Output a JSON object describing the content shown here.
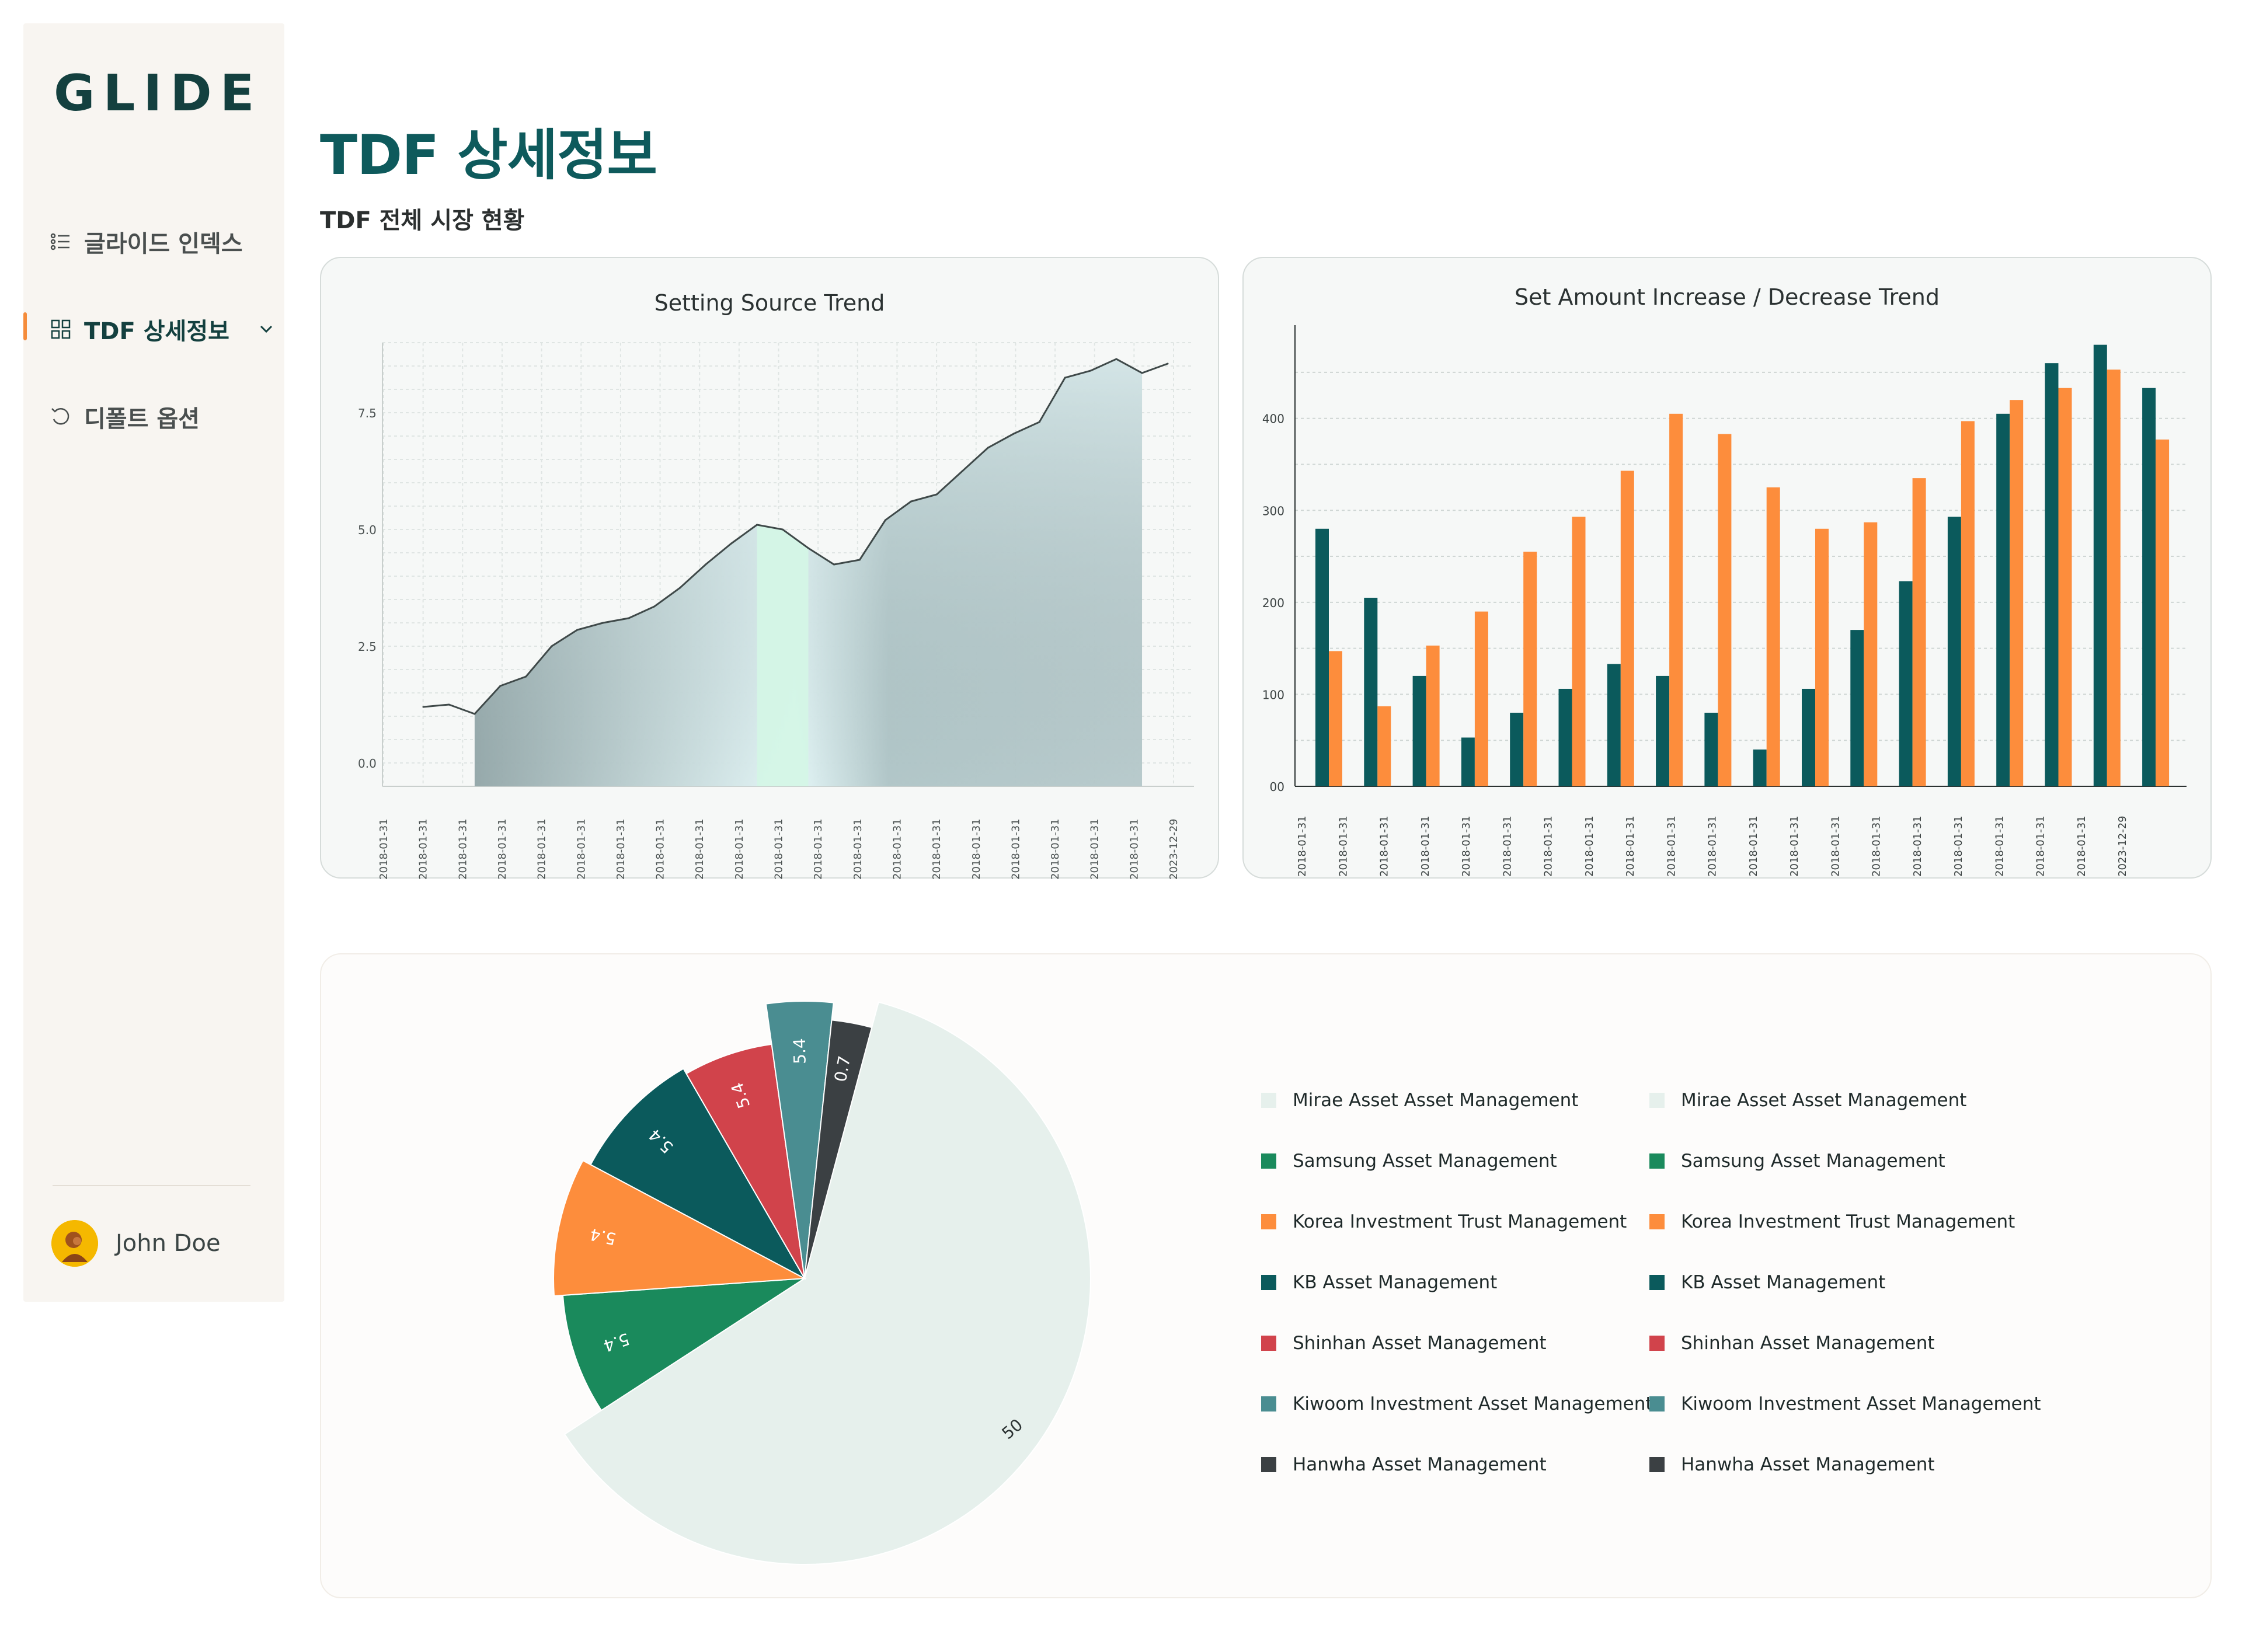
{
  "sidebar": {
    "logo": "GLIDE",
    "items": [
      {
        "label": "글라이드 인덱스"
      },
      {
        "label": "TDF 상세정보"
      },
      {
        "label": "디폴트 옵션"
      }
    ],
    "user_name": "John Doe"
  },
  "header": {
    "title": "TDF 상세정보",
    "subtitle": "TDF 전체 시장 현황"
  },
  "colors": {
    "brand": "#0e5a5c",
    "accent": "#f58c3b",
    "teal_dark": "#0b5a5c",
    "orange": "#fd8d3c"
  },
  "chart_data": [
    {
      "type": "area",
      "title": "Setting Source Trend",
      "xlabel": "",
      "ylabel": "",
      "ylim": [
        -0.5,
        9.0
      ],
      "y_ticks": [
        "0.0",
        "2.5",
        "5.0",
        "7.5"
      ],
      "x_ticks": [
        "2018-01-31",
        "2018-01-31",
        "2018-01-31",
        "2018-01-31",
        "2018-01-31",
        "2018-01-31",
        "2018-01-31",
        "2018-01-31",
        "2018-01-31",
        "2018-01-31",
        "2018-01-31",
        "2018-01-31",
        "2018-01-31",
        "2018-01-31",
        "2018-01-31",
        "2018-01-31",
        "2018-01-31",
        "2018-01-31",
        "2018-01-31",
        "2018-01-31",
        "2023-12-29"
      ],
      "grid": true,
      "series": [
        {
          "values": [
            1.2,
            1.25,
            1.05,
            1.65,
            1.85,
            2.5,
            2.85,
            3.0,
            3.1,
            3.35,
            3.75,
            4.25,
            4.7,
            5.1,
            5.0,
            4.6,
            4.25,
            4.35,
            5.2,
            5.6,
            5.75,
            6.25,
            6.75,
            7.05,
            7.3,
            8.25,
            8.4,
            8.65,
            8.35,
            8.55
          ]
        }
      ]
    },
    {
      "type": "bar",
      "title": "Set Amount Increase / Decrease Trend",
      "xlabel": "",
      "ylabel": "",
      "ylim": [
        0,
        495
      ],
      "y_ticks": [
        "00",
        "100",
        "200",
        "300",
        "400"
      ],
      "x_ticks": [
        "2018-01-31",
        "2018-01-31",
        "2018-01-31",
        "2018-01-31",
        "2018-01-31",
        "2018-01-31",
        "2018-01-31",
        "2018-01-31",
        "2018-01-31",
        "2018-01-31",
        "2018-01-31",
        "2018-01-31",
        "2018-01-31",
        "2018-01-31",
        "2018-01-31",
        "2018-01-31",
        "2018-01-31",
        "2018-01-31",
        "2018-01-31",
        "2018-01-31",
        "2023-12-29"
      ],
      "grid": true,
      "series": [
        {
          "values": [
            280,
            205,
            120,
            53,
            80,
            106,
            133,
            120,
            80,
            40,
            106,
            170,
            223,
            293,
            405,
            460,
            480,
            433
          ]
        },
        {
          "values": [
            147,
            87,
            153,
            190,
            255,
            293,
            343,
            405,
            383,
            325,
            280,
            287,
            335,
            397,
            420,
            433,
            453,
            377
          ]
        }
      ]
    },
    {
      "type": "pie",
      "title": "",
      "slices": [
        {
          "label": "Mirae Asset Asset Management",
          "value": 50,
          "display": "50",
          "color": "#e6f0ec"
        },
        {
          "label": "Samsung Asset Management",
          "value": 5.4,
          "display": "5.4",
          "color": "#1a8a5c"
        },
        {
          "label": "Korea Investment Trust Management",
          "value": 5.4,
          "display": "5.4",
          "color": "#fd8d3c"
        },
        {
          "label": "KB Asset Management",
          "value": 5.4,
          "display": "5.4",
          "color": "#0b5a5c"
        },
        {
          "label": "Shinhan Asset Management",
          "value": 5.4,
          "display": "5.4",
          "color": "#d1434b"
        },
        {
          "label": "Kiwoom Investment Asset Management",
          "value": 5.4,
          "display": "5.4",
          "color": "#4a8d91"
        },
        {
          "label": "Hanwha Asset Management",
          "value": 0.7,
          "display": "0.7",
          "color": "#3b4043"
        }
      ],
      "legend_placement": "right"
    }
  ]
}
